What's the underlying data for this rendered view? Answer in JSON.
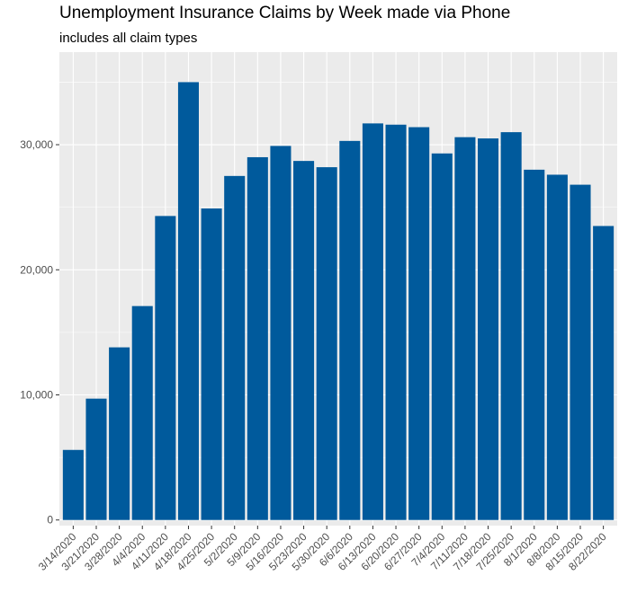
{
  "chart_data": {
    "type": "bar",
    "title": "Unemployment Insurance Claims by Week made via Phone",
    "subtitle": "includes all claim types",
    "xlabel": "",
    "ylabel": "",
    "categories": [
      "3/14/2020",
      "3/21/2020",
      "3/28/2020",
      "4/4/2020",
      "4/11/2020",
      "4/18/2020",
      "4/25/2020",
      "5/2/2020",
      "5/9/2020",
      "5/16/2020",
      "5/23/2020",
      "5/30/2020",
      "6/6/2020",
      "6/13/2020",
      "6/20/2020",
      "6/27/2020",
      "7/4/2020",
      "7/11/2020",
      "7/18/2020",
      "7/25/2020",
      "8/1/2020",
      "8/8/2020",
      "8/15/2020",
      "8/22/2020"
    ],
    "values": [
      5600,
      9700,
      13800,
      17100,
      24300,
      35000,
      24900,
      27500,
      29000,
      29900,
      28700,
      28200,
      30300,
      31700,
      31600,
      31400,
      29300,
      30600,
      30500,
      31000,
      28000,
      27600,
      26800,
      23500
    ],
    "ylim": [
      -450,
      37400
    ],
    "yticks": [
      0,
      10000,
      20000,
      30000
    ],
    "ytick_labels": [
      "0",
      "10,000",
      "20,000",
      "30,000"
    ],
    "grid": true,
    "legend": "none",
    "colors": {
      "bar": "#005a9c",
      "panel": "#ebebeb",
      "grid_major": "#ffffff",
      "axis_text": "#4d4d4d"
    }
  }
}
